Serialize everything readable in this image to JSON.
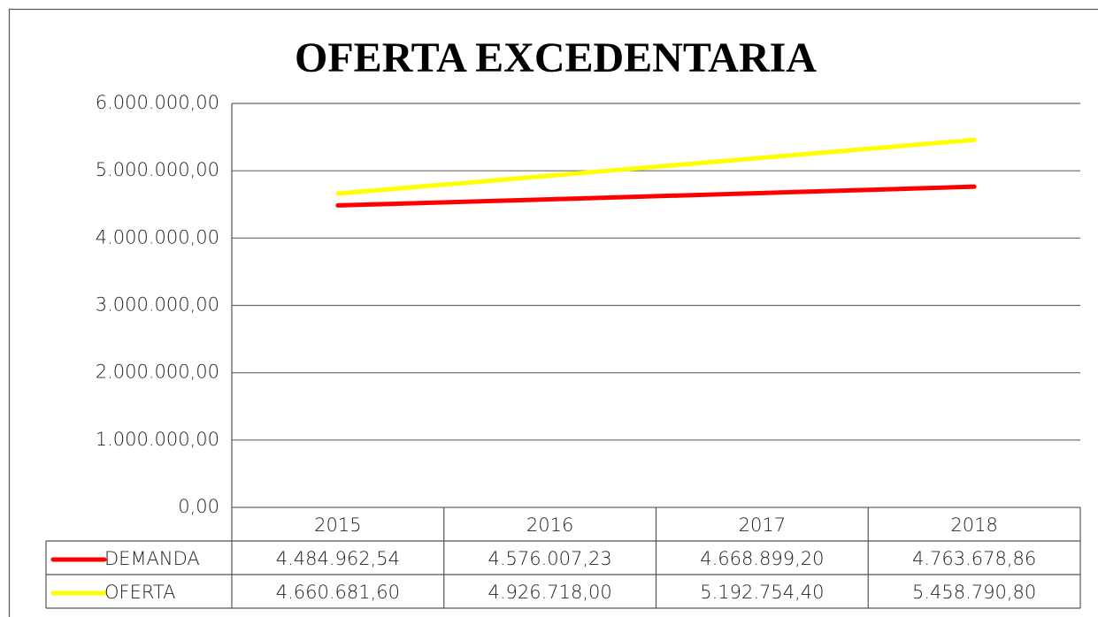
{
  "chart_data": {
    "type": "line",
    "title": "OFERTA EXCEDENTARIA",
    "categories": [
      "2015",
      "2016",
      "2017",
      "2018"
    ],
    "series": [
      {
        "name": "DEMANDA",
        "color": "#ff0000",
        "values": [
          4484962.54,
          4576007.23,
          4668899.2,
          4763678.86
        ],
        "value_labels": [
          "4.484.962,54",
          "4.576.007,23",
          "4.668.899,20",
          "4.763.678,86"
        ]
      },
      {
        "name": "OFERTA",
        "color": "#ffff00",
        "values": [
          4660681.6,
          4926718,
          5192754.4,
          5458790.8
        ],
        "value_labels": [
          "4.660.681,60",
          "4.926.718,00",
          "5.192.754,40",
          "5.458.790,80"
        ]
      }
    ],
    "ylim": [
      0,
      6000000
    ],
    "yticks": [
      {
        "value": 0,
        "label": "0,00"
      },
      {
        "value": 1000000,
        "label": "1.000.000,00"
      },
      {
        "value": 2000000,
        "label": "2.000.000,00"
      },
      {
        "value": 3000000,
        "label": "3.000.000,00"
      },
      {
        "value": 4000000,
        "label": "4.000.000,00"
      },
      {
        "value": 5000000,
        "label": "5.000.000,00"
      },
      {
        "value": 6000000,
        "label": "6.000.000,00"
      }
    ],
    "grid": true
  }
}
